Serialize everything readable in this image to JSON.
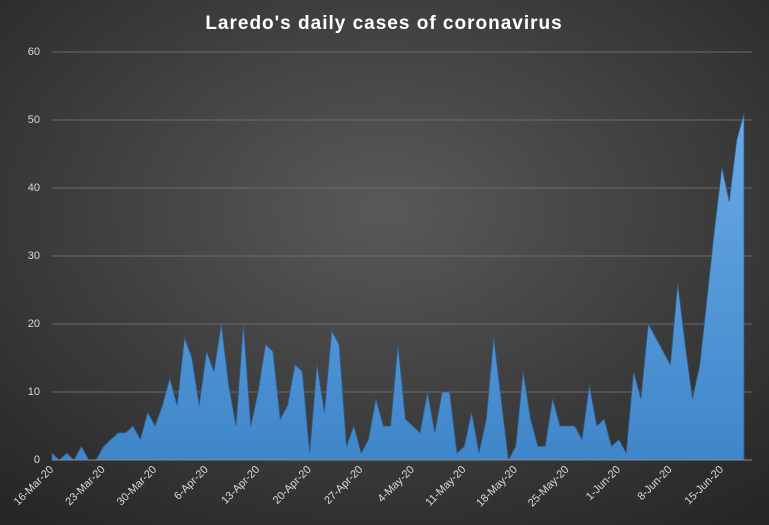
{
  "chart_data": {
    "type": "area",
    "title": "Laredo's daily cases of coronavirus",
    "categories": [
      "16-Mar-20",
      null,
      null,
      null,
      null,
      null,
      null,
      "23-Mar-20",
      null,
      null,
      null,
      null,
      null,
      null,
      "30-Mar-20",
      null,
      null,
      null,
      null,
      null,
      null,
      "6-Apr-20",
      null,
      null,
      null,
      null,
      null,
      null,
      "13-Apr-20",
      null,
      null,
      null,
      null,
      null,
      null,
      "20-Apr-20",
      null,
      null,
      null,
      null,
      null,
      null,
      "27-Apr-20",
      null,
      null,
      null,
      null,
      null,
      null,
      "4-May-20",
      null,
      null,
      null,
      null,
      null,
      null,
      "11-May-20",
      null,
      null,
      null,
      null,
      null,
      null,
      "18-May-20",
      null,
      null,
      null,
      null,
      null,
      null,
      "25-May-20",
      null,
      null,
      null,
      null,
      null,
      null,
      "1-Jun-20",
      null,
      null,
      null,
      null,
      null,
      null,
      "8-Jun-20",
      null,
      null,
      null,
      null,
      null,
      null,
      "15-Jun-20",
      null,
      null,
      null
    ],
    "values": [
      1,
      0,
      1,
      0,
      2,
      0,
      0,
      2,
      3,
      4,
      4,
      5,
      3,
      7,
      5,
      8,
      12,
      8,
      18,
      15,
      8,
      16,
      13,
      20,
      11,
      5,
      20,
      5,
      10,
      17,
      16,
      6,
      8,
      14,
      13,
      1,
      14,
      7,
      19,
      17,
      2,
      5,
      1,
      3,
      9,
      5,
      5,
      17,
      6,
      5,
      4,
      10,
      4,
      10,
      10,
      1,
      2,
      7,
      1,
      6,
      18,
      9,
      0,
      2,
      13,
      6,
      2,
      2,
      9,
      5,
      5,
      5,
      3,
      11,
      5,
      6,
      2,
      3,
      1,
      13,
      9,
      20,
      18,
      16,
      14,
      26,
      17,
      9,
      14,
      24,
      34,
      43,
      38,
      47,
      51
    ],
    "color": "#5b9bd5",
    "ylim": [
      0,
      60
    ],
    "yticks": [
      0,
      10,
      20,
      30,
      40,
      50,
      60
    ],
    "grid": true
  }
}
